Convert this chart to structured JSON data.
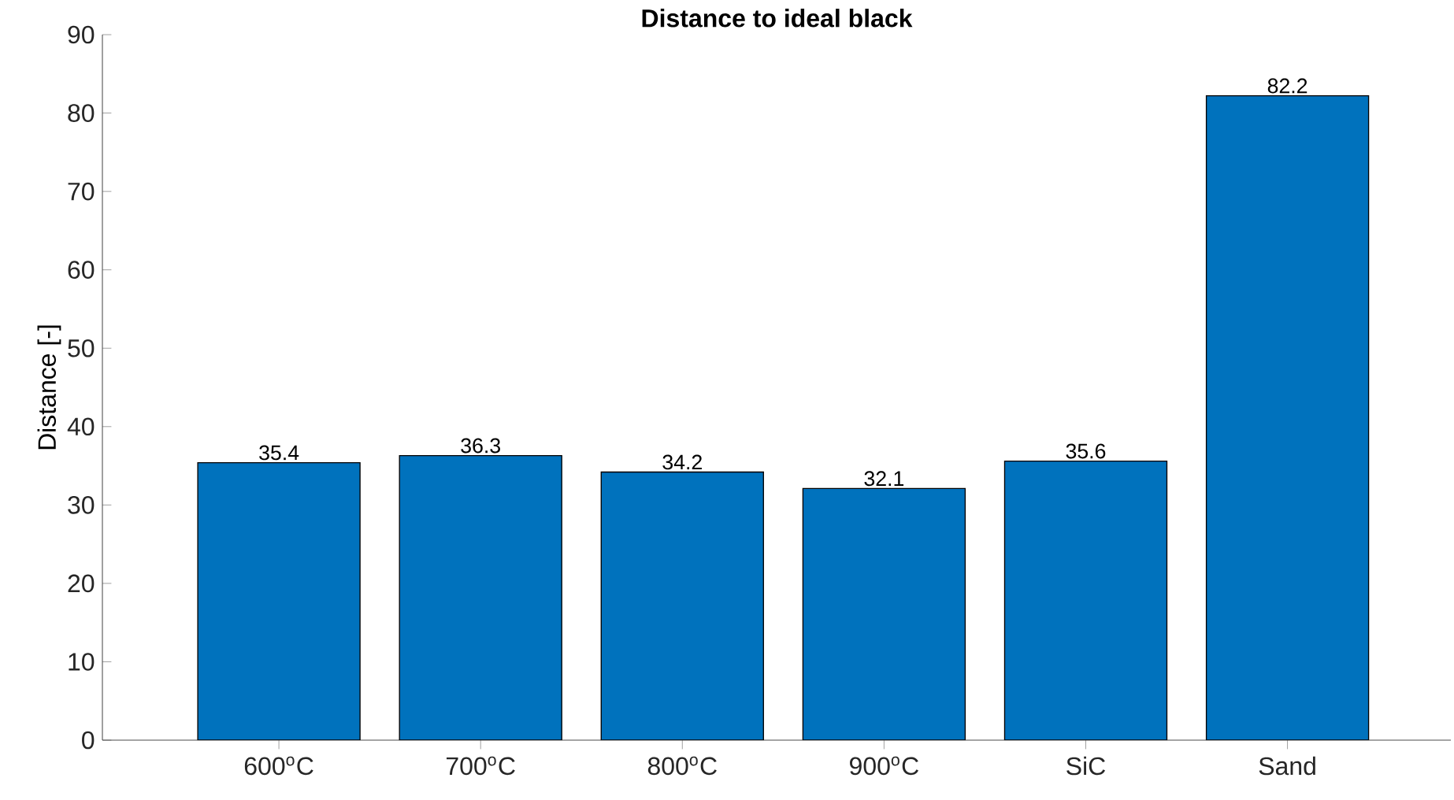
{
  "chart_data": {
    "type": "bar",
    "title": "Distance to ideal black",
    "ylabel": "Distance [-]",
    "categories": [
      "600$^{o}$C",
      "700$^{o}$C",
      "800$^{o}$C",
      "900$^{o}$C",
      "SiC",
      "Sand"
    ],
    "values": [
      35.4,
      36.3,
      34.2,
      32.1,
      35.6,
      82.2
    ],
    "color": "#0072bd",
    "data_labels": true,
    "ylim": [
      0,
      90
    ],
    "yticks": [
      0,
      10,
      20,
      30,
      40,
      50,
      60,
      70,
      80,
      90
    ]
  }
}
